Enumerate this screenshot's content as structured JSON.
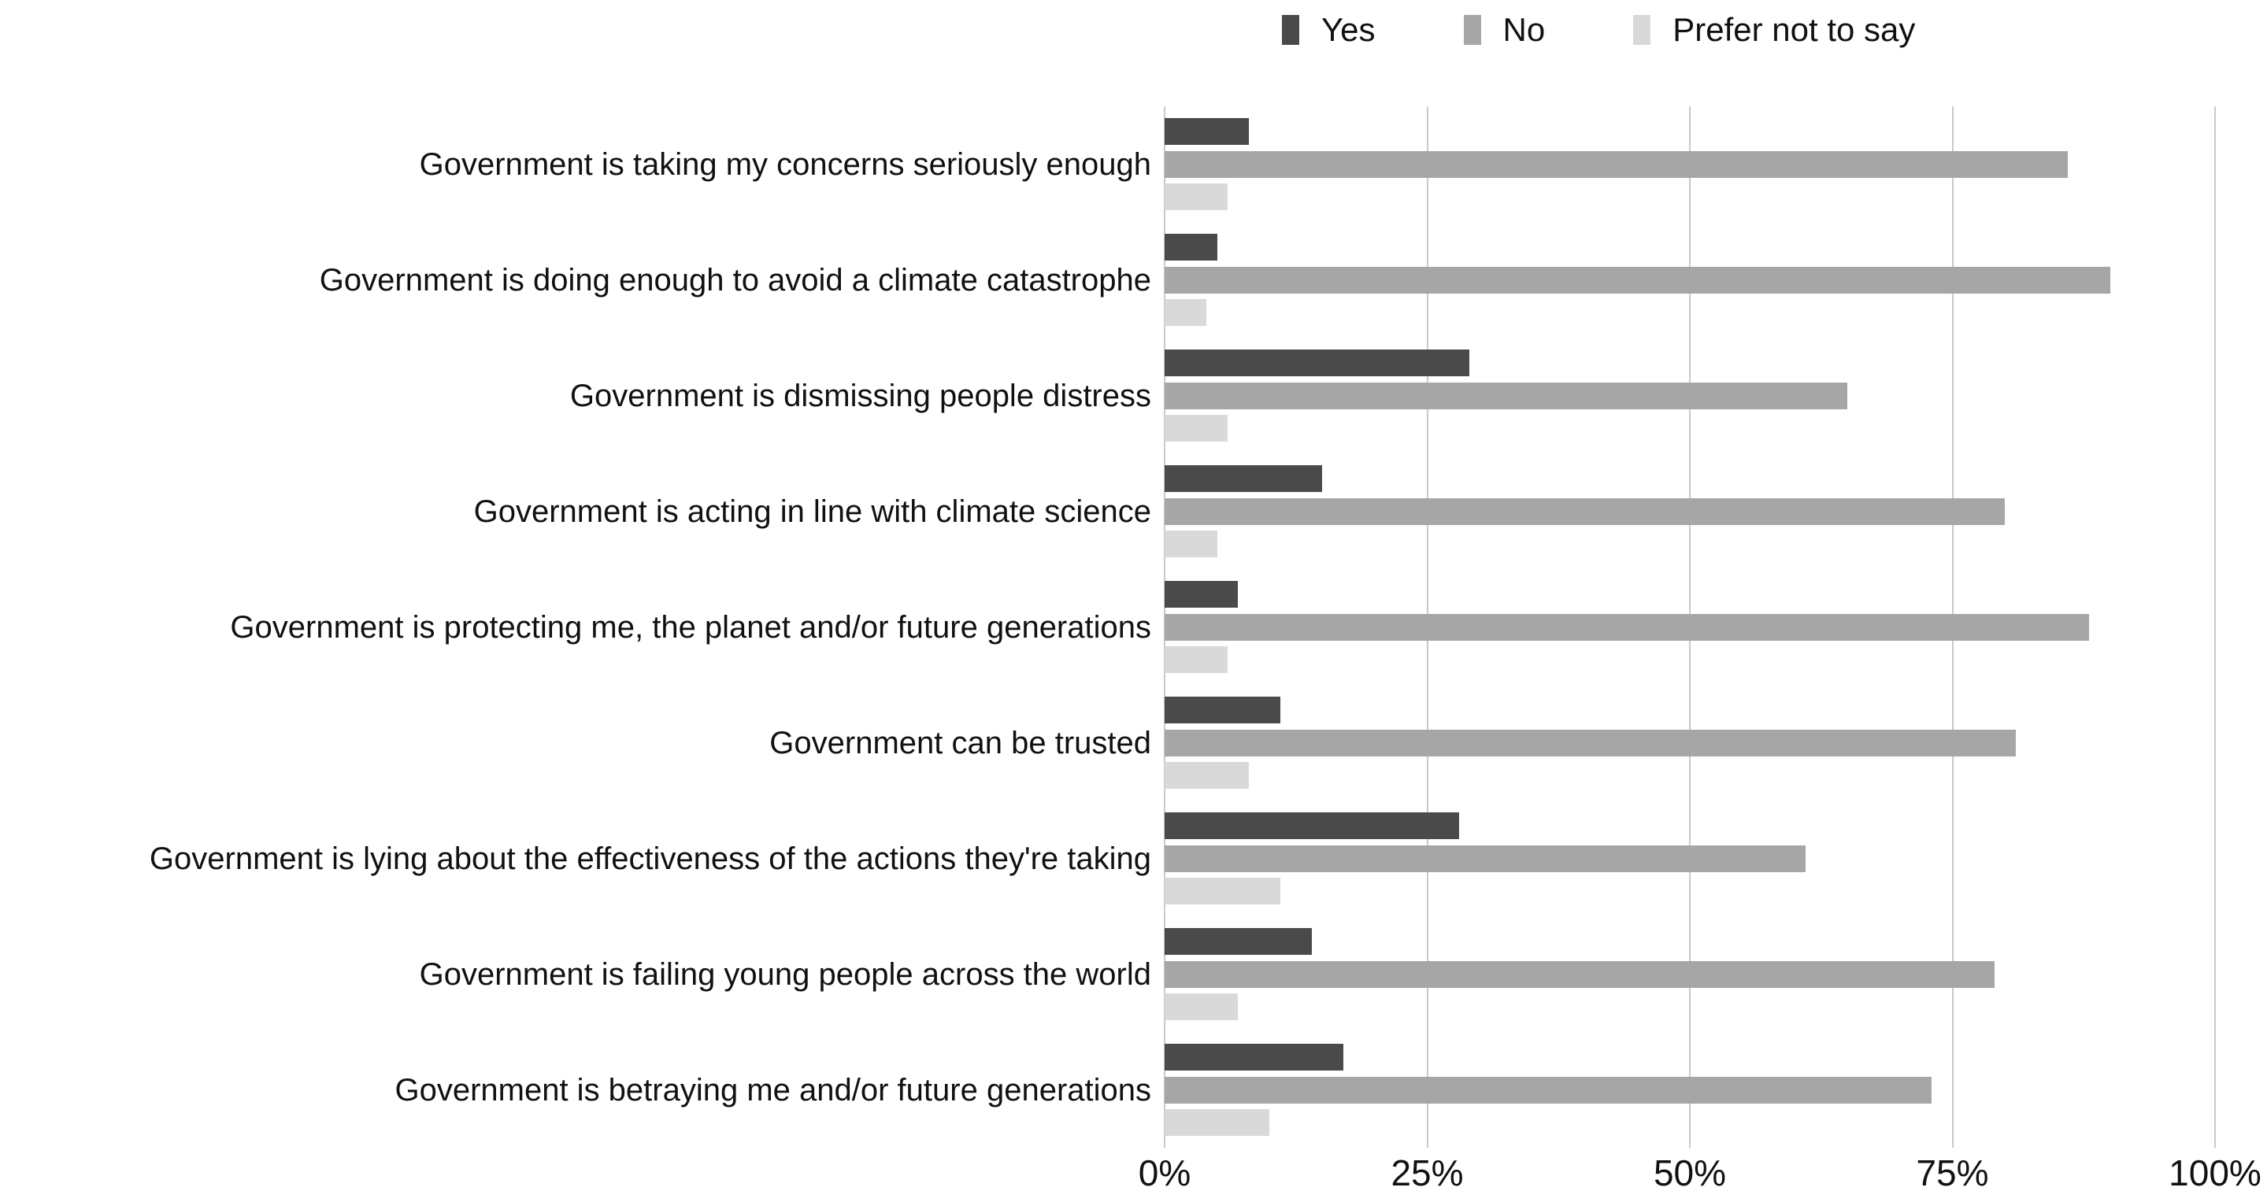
{
  "chart_data": {
    "type": "bar",
    "orientation": "horizontal",
    "title": "",
    "categories": [
      "Government is taking my concerns seriously enough",
      "Government is doing enough to avoid a climate catastrophe",
      "Government is dismissing people distress",
      "Government is acting in line with climate science",
      "Government is protecting me, the planet and/or future generations",
      "Government can be trusted",
      "Government is lying about the effectiveness of the actions they're taking",
      "Government is failing young people across the world",
      "Government is betraying me and/or future generations"
    ],
    "series": [
      {
        "name": "Yes",
        "color": "#4a4a4a",
        "values": [
          8,
          5,
          29,
          15,
          7,
          11,
          28,
          14,
          17
        ]
      },
      {
        "name": "No",
        "color": "#a6a6a6",
        "values": [
          86,
          90,
          65,
          80,
          88,
          81,
          61,
          79,
          73
        ]
      },
      {
        "name": "Prefer not to say",
        "color": "#d9d9d9",
        "values": [
          6,
          4,
          6,
          5,
          6,
          8,
          11,
          7,
          10
        ]
      }
    ],
    "x_axis": {
      "min": 0,
      "max": 100,
      "unit": "%",
      "tick_values": [
        0,
        25,
        50,
        75,
        100
      ],
      "tick_labels": [
        "0%",
        "25%",
        "50%",
        "75%",
        "100%"
      ]
    },
    "legend_position": "top-right",
    "grid": true,
    "gridline_color": "#c9c9c9",
    "background_color": "#ffffff",
    "text_color": "#111111"
  }
}
